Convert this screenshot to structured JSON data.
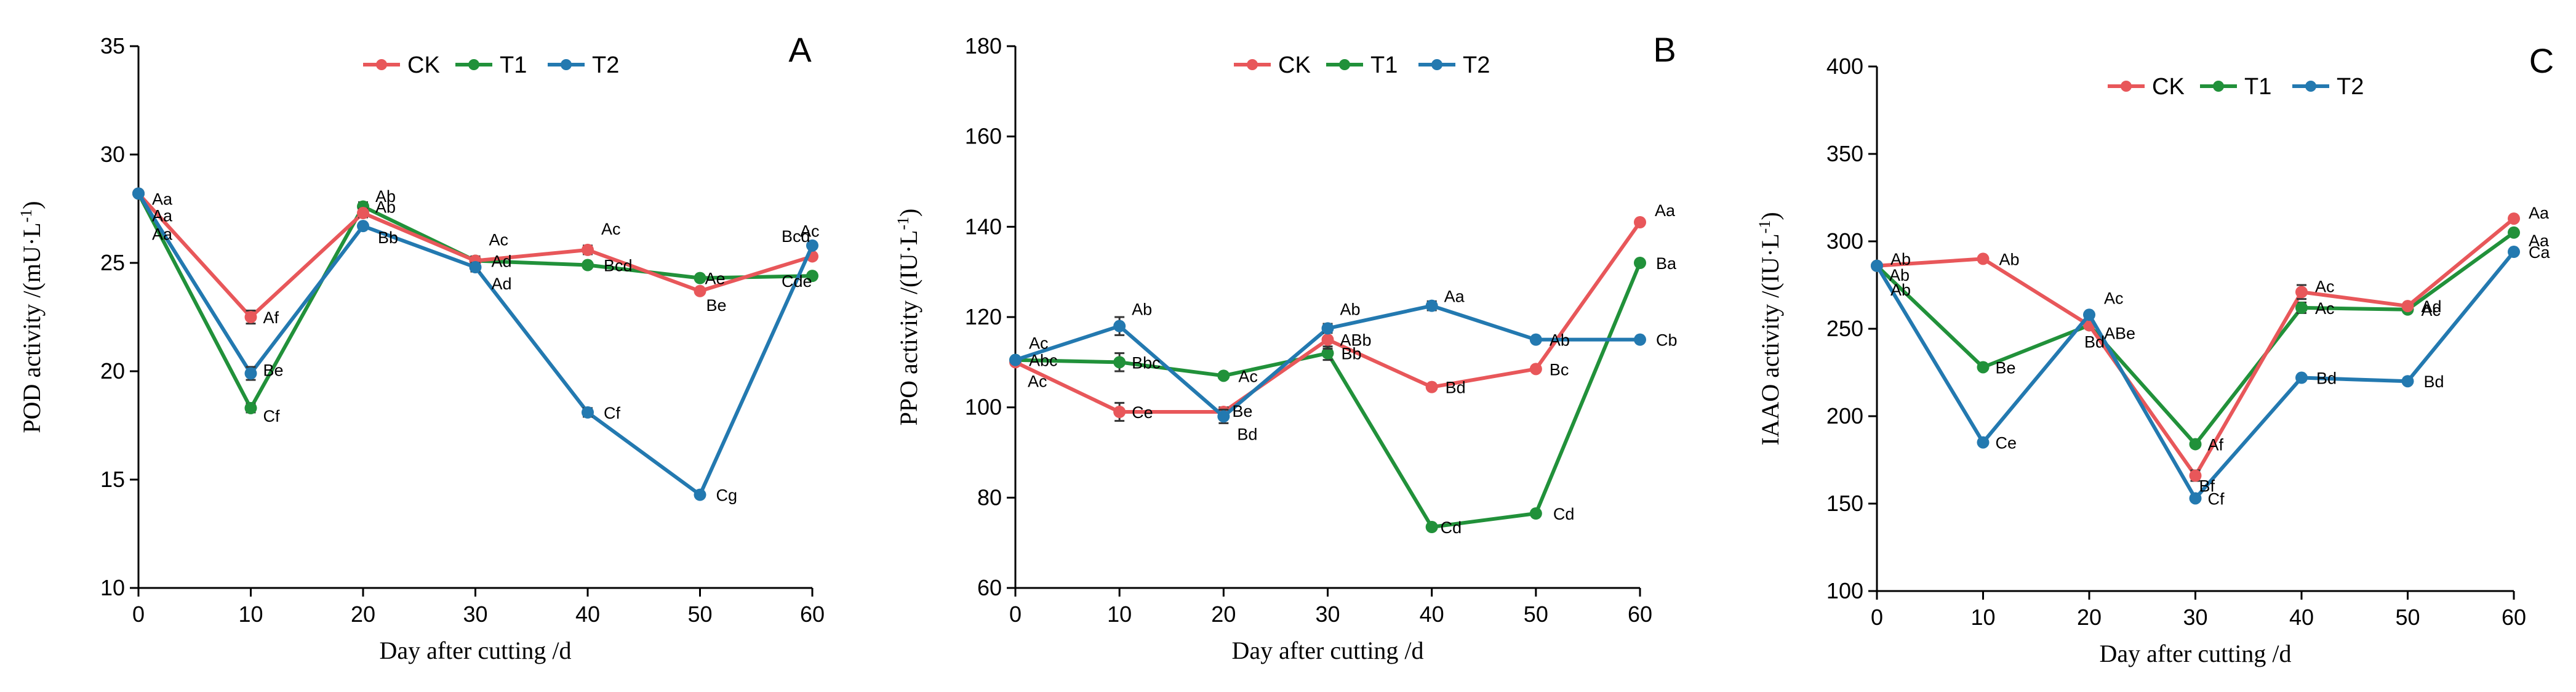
{
  "colors": {
    "CK": "#e8575a",
    "T1": "#21913a",
    "T2": "#2379b0"
  },
  "chart_data": [
    {
      "type": "line",
      "panel": "A",
      "ylabel": "POD activity /(mU·L",
      "ylabel_sup": "-1",
      "ylabel_close": ")",
      "xlabel": "Day after cutting /d",
      "x": [
        0,
        10,
        20,
        30,
        40,
        50,
        60
      ],
      "xlim": [
        0,
        60
      ],
      "ylim": [
        10,
        35
      ],
      "yticks": [
        10,
        15,
        20,
        25,
        30,
        35
      ],
      "xticks": [
        0,
        10,
        20,
        30,
        40,
        50,
        60
      ],
      "legend_position": "top-center",
      "series": [
        {
          "name": "CK",
          "values": [
            28.2,
            22.5,
            27.3,
            25.1,
            25.6,
            23.7,
            25.3
          ],
          "errors": [
            0,
            0.3,
            0.2,
            0.2,
            0.2,
            0,
            0
          ],
          "labels": [
            "Aa",
            "Af",
            "Ab",
            "Ac",
            "Ac",
            "Be",
            "Ac"
          ]
        },
        {
          "name": "T1",
          "values": [
            28.2,
            18.3,
            27.6,
            25.1,
            24.9,
            24.3,
            24.4
          ],
          "errors": [
            0,
            0.2,
            0.2,
            0.2,
            0,
            0,
            0
          ],
          "labels": [
            "Aa",
            "Cf",
            "Ab",
            "Ad",
            "Bcd",
            "Ae",
            "Cde"
          ]
        },
        {
          "name": "T2",
          "values": [
            28.2,
            19.9,
            26.7,
            24.8,
            18.1,
            14.3,
            25.8
          ],
          "errors": [
            0,
            0.3,
            0,
            0.2,
            0.2,
            0,
            0
          ],
          "labels": [
            "Aa",
            "Be",
            "Bb",
            "Ad",
            "Cf",
            "Cg",
            "Bcd"
          ]
        }
      ]
    },
    {
      "type": "line",
      "panel": "B",
      "ylabel": "PPO activity /(IU·L",
      "ylabel_sup": "-1",
      "ylabel_close": ")",
      "xlabel": "Day after cutting /d",
      "x": [
        0,
        10,
        20,
        30,
        40,
        50,
        60
      ],
      "xlim": [
        0,
        60
      ],
      "ylim": [
        60,
        180
      ],
      "yticks": [
        60,
        80,
        100,
        120,
        140,
        160,
        180
      ],
      "xticks": [
        0,
        10,
        20,
        30,
        40,
        50,
        60
      ],
      "legend_position": "top-center",
      "series": [
        {
          "name": "CK",
          "values": [
            110,
            99,
            99,
            115,
            104.5,
            108.5,
            141
          ],
          "errors": [
            0,
            2,
            1,
            2,
            0,
            0,
            0
          ],
          "labels": [
            "Ac",
            "Ce",
            "Be",
            "ABb",
            "Bd",
            "Bc",
            "Aa"
          ]
        },
        {
          "name": "T1",
          "values": [
            110.5,
            110,
            107,
            112,
            73.5,
            76.5,
            132
          ],
          "errors": [
            0,
            2,
            0,
            1.5,
            0,
            0,
            0
          ],
          "labels": [
            "Abc",
            "Bbc",
            "Ac",
            "Bb",
            "Cd",
            "Cd",
            "Ba"
          ]
        },
        {
          "name": "T2",
          "values": [
            110.5,
            118,
            98,
            117.5,
            122.5,
            115,
            115
          ],
          "errors": [
            0,
            2,
            1.5,
            1,
            1,
            0,
            0
          ],
          "labels": [
            "Ac",
            "Ab",
            "Bd",
            "Ab",
            "Aa",
            "Ab",
            "Cb"
          ]
        }
      ]
    },
    {
      "type": "line",
      "panel": "C",
      "ylabel": "IAAO activity /(IU·L",
      "ylabel_sup": "-1",
      "ylabel_close": ")",
      "xlabel": "Day after cutting /d",
      "x": [
        0,
        10,
        20,
        30,
        40,
        50,
        60
      ],
      "xlim": [
        0,
        60
      ],
      "ylim": [
        100,
        400
      ],
      "yticks": [
        100,
        150,
        200,
        250,
        300,
        350,
        400
      ],
      "xticks": [
        0,
        10,
        20,
        30,
        40,
        50,
        60
      ],
      "legend_position": "top-center",
      "series": [
        {
          "name": "CK",
          "values": [
            286,
            290,
            252,
            166,
            271,
            263,
            313
          ],
          "errors": [
            0,
            0,
            0,
            3,
            4,
            0,
            0
          ],
          "labels": [
            "Ab",
            "Ab",
            "ABe",
            "Bf",
            "Ac",
            "Ad",
            "Aa"
          ]
        },
        {
          "name": "T1",
          "values": [
            286,
            228,
            252,
            184,
            262,
            261,
            305
          ],
          "errors": [
            0,
            0,
            0,
            0,
            3,
            0,
            0
          ],
          "labels": [
            "Ab",
            "Be",
            "Bd",
            "Af",
            "Ac",
            "Ac",
            "Aa"
          ]
        },
        {
          "name": "T2",
          "values": [
            286,
            185,
            258,
            153,
            222,
            220,
            294
          ],
          "errors": [
            0,
            0,
            0,
            0,
            0,
            0,
            0
          ],
          "labels": [
            "Ab",
            "Ce",
            "Ac",
            "Cf",
            "Bd",
            "Bd",
            "Ca"
          ]
        }
      ]
    }
  ]
}
